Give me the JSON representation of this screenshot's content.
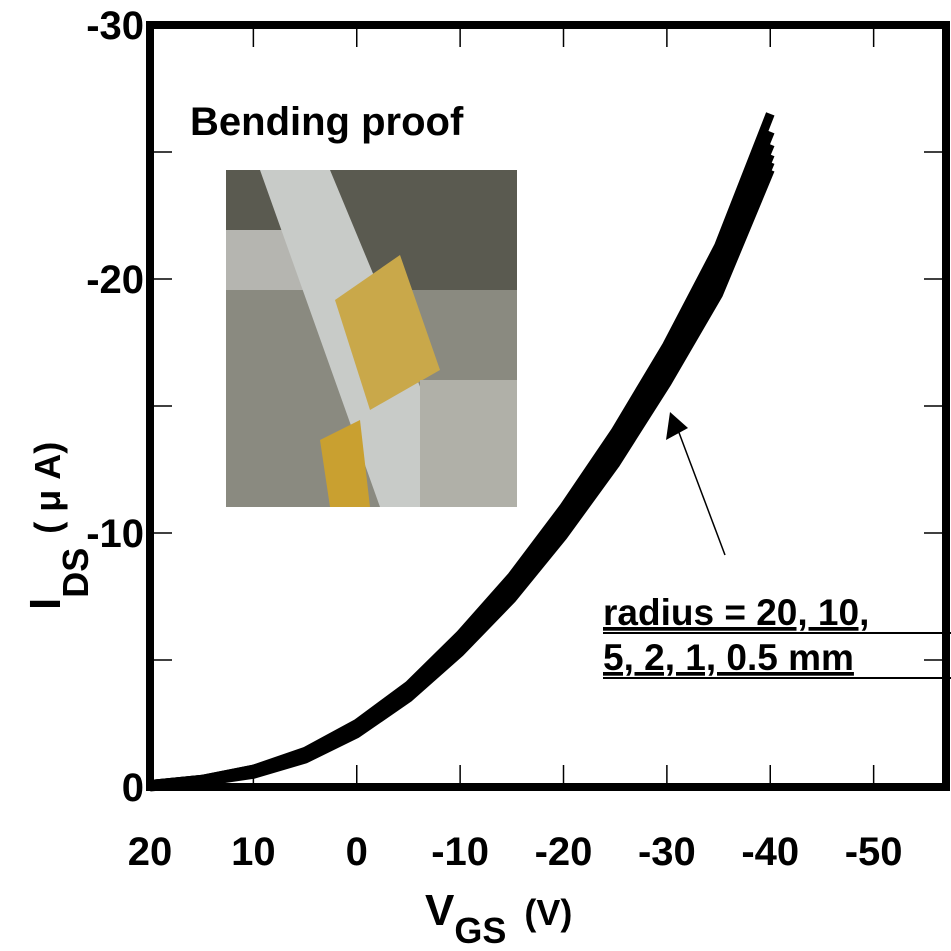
{
  "chart_data": {
    "type": "line",
    "annotations": {
      "inset_title": "Bending proof",
      "note_line1": "radius = 20, 10,",
      "note_line2": "5, 2, 1, 0.5 mm"
    },
    "xlabel": {
      "main": "V",
      "sub": "GS",
      "unit": "(V)"
    },
    "ylabel": {
      "main": "I",
      "sub": "DS",
      "unit": "( μ A)"
    },
    "x": [
      20,
      15,
      10,
      5,
      0,
      -5,
      -10,
      -15,
      -20,
      -25,
      -30,
      -35,
      -40
    ],
    "series": [
      {
        "color": "#000000",
        "values": [
          -0.1,
          -0.3,
          -0.7,
          -1.4,
          -2.5,
          -4.0,
          -6.0,
          -8.3,
          -11.0,
          -14.0,
          -17.4,
          -21.3,
          -26.5
        ]
      },
      {
        "color": "#000000",
        "values": [
          -0.1,
          -0.3,
          -0.7,
          -1.3,
          -2.4,
          -3.9,
          -5.8,
          -8.1,
          -10.7,
          -13.7,
          -17.0,
          -20.8,
          -25.8
        ]
      },
      {
        "color": "#000000",
        "values": [
          -0.1,
          -0.3,
          -0.6,
          -1.3,
          -2.3,
          -3.8,
          -5.7,
          -7.9,
          -10.5,
          -13.4,
          -16.7,
          -20.4,
          -25.3
        ]
      },
      {
        "color": "#000000",
        "values": [
          -0.1,
          -0.2,
          -0.6,
          -1.2,
          -2.2,
          -3.7,
          -5.5,
          -7.7,
          -10.3,
          -13.1,
          -16.4,
          -20.0,
          -24.9
        ]
      },
      {
        "color": "#000000",
        "values": [
          -0.1,
          -0.2,
          -0.6,
          -1.2,
          -2.2,
          -3.6,
          -5.4,
          -7.6,
          -10.1,
          -12.9,
          -16.1,
          -19.7,
          -24.6
        ]
      },
      {
        "color": "#000000",
        "values": [
          0,
          -0.2,
          -0.5,
          -1.1,
          -2.1,
          -3.5,
          -5.3,
          -7.4,
          -9.9,
          -12.7,
          -15.9,
          -19.4,
          -24.3
        ]
      }
    ],
    "xlim": [
      20,
      -57
    ],
    "xticks": [
      20,
      10,
      0,
      -10,
      -20,
      -30,
      -40,
      -50
    ],
    "ylim": [
      0,
      -30
    ],
    "yticks": [
      0,
      -10,
      -20,
      -30
    ],
    "yminorticks": [
      -5,
      -15,
      -25
    ],
    "grid": false
  }
}
